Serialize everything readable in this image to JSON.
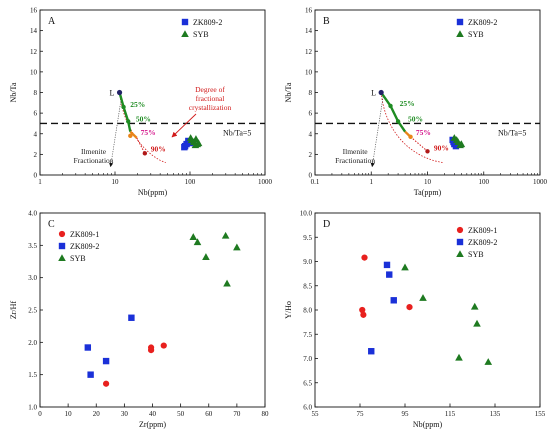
{
  "colors": {
    "zk8091": "#e8201e",
    "zk8092": "#1a30d8",
    "syb": "#1e7a20",
    "green_path": "#1e8c22",
    "orange_path": "#e9851a",
    "red_path": "#d11919",
    "axis": "#111111"
  },
  "chart_data": [
    {
      "type": "scatter",
      "panel_label": "A",
      "xlabel": "Nb(ppm)",
      "ylabel": "Nb/Ta",
      "xscale": "log",
      "xlim": [
        1,
        1000
      ],
      "ylim": [
        0,
        16
      ],
      "xticks": [
        1,
        10,
        100,
        1000
      ],
      "xtick_labels": [
        "1",
        "10",
        "100",
        "1000"
      ],
      "yticks": [
        0,
        2,
        4,
        6,
        8,
        10,
        12,
        14,
        16
      ],
      "ytick_labels": [
        "0",
        "2",
        "4",
        "6",
        "8",
        "10",
        "12",
        "14",
        "16"
      ],
      "legend_position": "top-right",
      "series": [
        {
          "name": "ZK809-2",
          "marker": "square",
          "color": "#1a30d8",
          "x": [
            84,
            90,
            95,
            100,
            86
          ],
          "y": [
            2.7,
            3.0,
            3.3,
            3.1,
            2.8
          ]
        },
        {
          "name": "SYB",
          "marker": "triangle",
          "color": "#1e7a20",
          "x": [
            102,
            112,
            120,
            125,
            105,
            118,
            130
          ],
          "y": [
            3.6,
            3.2,
            3.5,
            3.0,
            3.4,
            2.9,
            3.1
          ]
        }
      ],
      "reference_line": {
        "y": 5,
        "label": "Nb/Ta=5"
      },
      "trend": {
        "start_label": "L",
        "start": [
          11.5,
          8.0
        ],
        "green_path": [
          [
            11.5,
            8.0
          ],
          [
            13,
            6.6
          ],
          [
            15,
            5.2
          ],
          [
            16,
            4.2
          ]
        ],
        "orange_path": [
          [
            16,
            4.2
          ],
          [
            19.5,
            3.6
          ]
        ],
        "red_path": [
          [
            19.5,
            3.6
          ],
          [
            25,
            2.1
          ]
        ],
        "dots": [
          [
            11.5,
            8.0
          ],
          [
            13,
            6.6
          ],
          [
            15,
            5.2
          ],
          [
            16,
            3.8
          ],
          [
            25,
            2.1
          ]
        ],
        "percent_labels": [
          {
            "text": "25%",
            "x": 16,
            "y": 6.6
          },
          {
            "text": "50%",
            "x": 19,
            "y": 5.2
          },
          {
            "text": "75%",
            "x": 22,
            "y": 3.9
          },
          {
            "text": "90%",
            "x": 30,
            "y": 2.3
          }
        ],
        "annotation_right": [
          "Degree of",
          "fractional",
          "crystallization"
        ],
        "annotation_left": [
          "Ilmenite",
          "Fractionation"
        ]
      }
    },
    {
      "type": "scatter",
      "panel_label": "B",
      "xlabel": "Ta(ppm)",
      "ylabel": "Nb/Ta",
      "xscale": "log",
      "xlim": [
        0.1,
        1000
      ],
      "ylim": [
        0,
        16
      ],
      "xticks": [
        0.1,
        1,
        10,
        100,
        1000
      ],
      "xtick_labels": [
        "0.1",
        "1",
        "10",
        "100",
        "1000"
      ],
      "yticks": [
        0,
        2,
        4,
        6,
        8,
        10,
        12,
        14,
        16
      ],
      "ytick_labels": [
        "0",
        "2",
        "4",
        "6",
        "8",
        "10",
        "12",
        "14",
        "16"
      ],
      "legend_position": "top-right",
      "series": [
        {
          "name": "ZK809-2",
          "marker": "square",
          "color": "#1a30d8",
          "x": [
            28,
            30,
            32,
            29
          ],
          "y": [
            3.4,
            3.0,
            2.8,
            3.2
          ]
        },
        {
          "name": "SYB",
          "marker": "triangle",
          "color": "#1e7a20",
          "x": [
            30,
            35,
            38,
            33,
            40
          ],
          "y": [
            3.6,
            3.2,
            2.9,
            3.4,
            3.0
          ]
        }
      ],
      "reference_line": {
        "y": 5,
        "label": "Nb/Ta=5"
      },
      "trend": {
        "start_label": "L",
        "start": [
          1.5,
          8.0
        ],
        "green_path": [
          [
            1.5,
            8.0
          ],
          [
            2.2,
            6.7
          ],
          [
            3.0,
            5.2
          ],
          [
            4.0,
            4.2
          ]
        ],
        "orange_path": [
          [
            4.0,
            4.2
          ],
          [
            5.0,
            3.7
          ]
        ],
        "red_path": [
          [
            5.0,
            3.7
          ],
          [
            10,
            2.3
          ]
        ],
        "dots": [
          [
            1.5,
            8.0
          ],
          [
            2.2,
            6.7
          ],
          [
            3.0,
            5.2
          ],
          [
            5.0,
            3.7
          ],
          [
            10,
            2.3
          ]
        ],
        "percent_labels": [
          {
            "text": "25%",
            "x": 3.2,
            "y": 6.7
          },
          {
            "text": "50%",
            "x": 4.5,
            "y": 5.2
          },
          {
            "text": "75%",
            "x": 6.2,
            "y": 3.9
          },
          {
            "text": "90%",
            "x": 13,
            "y": 2.4
          }
        ],
        "annotation_left": [
          "Ilmenite",
          "Fractionation"
        ]
      }
    },
    {
      "type": "scatter",
      "panel_label": "C",
      "xlabel": "Zr(ppm)",
      "ylabel": "Zr/Hf",
      "xscale": "linear",
      "xlim": [
        0,
        80
      ],
      "ylim": [
        1.0,
        4.0
      ],
      "xticks": [
        0,
        10,
        20,
        30,
        40,
        50,
        60,
        70,
        80
      ],
      "xtick_labels": [
        "0",
        "10",
        "20",
        "30",
        "40",
        "50",
        "60",
        "70",
        "80"
      ],
      "yticks": [
        1.0,
        1.5,
        2.0,
        2.5,
        3.0,
        3.5,
        4.0
      ],
      "ytick_labels": [
        "1.0",
        "1.5",
        "2.0",
        "2.5",
        "3.0",
        "3.5",
        "4.0"
      ],
      "legend_position": "top-left",
      "series": [
        {
          "name": "ZK809-1",
          "marker": "circle",
          "color": "#e8201e",
          "x": [
            23.5,
            39.5,
            39.5,
            44
          ],
          "y": [
            1.36,
            1.88,
            1.92,
            1.95
          ]
        },
        {
          "name": "ZK809-2",
          "marker": "square",
          "color": "#1a30d8",
          "x": [
            17,
            18,
            23.5,
            32.5
          ],
          "y": [
            1.92,
            1.5,
            1.71,
            2.38
          ]
        },
        {
          "name": "SYB",
          "marker": "triangle",
          "color": "#1e7a20",
          "x": [
            54.5,
            56,
            59,
            66,
            66.5,
            70
          ],
          "y": [
            3.63,
            3.55,
            3.32,
            3.65,
            2.91,
            3.47
          ]
        }
      ]
    },
    {
      "type": "scatter",
      "panel_label": "D",
      "xlabel": "Nb(ppm)",
      "ylabel": "Y/Ho",
      "xscale": "linear",
      "xlim": [
        55,
        155
      ],
      "ylim": [
        6.0,
        10.0
      ],
      "xticks": [
        55,
        75,
        95,
        115,
        135,
        155
      ],
      "xtick_labels": [
        "55",
        "75",
        "95",
        "115",
        "135",
        "155"
      ],
      "yticks": [
        6.0,
        6.5,
        7.0,
        7.5,
        8.0,
        8.5,
        9.0,
        9.5,
        10.0
      ],
      "ytick_labels": [
        "6.0",
        "6.5",
        "7.0",
        "7.5",
        "8.0",
        "8.5",
        "9.0",
        "9.5",
        "10.0"
      ],
      "legend_position": "top-right",
      "series": [
        {
          "name": "ZK809-1",
          "marker": "circle",
          "color": "#e8201e",
          "x": [
            77,
            76,
            76.5,
            97
          ],
          "y": [
            9.08,
            8.0,
            7.9,
            8.06
          ]
        },
        {
          "name": "ZK809-2",
          "marker": "square",
          "color": "#1a30d8",
          "x": [
            87,
            88,
            90,
            80
          ],
          "y": [
            8.93,
            8.73,
            8.2,
            7.15
          ]
        },
        {
          "name": "SYB",
          "marker": "triangle",
          "color": "#1e7a20",
          "x": [
            95,
            103,
            119,
            126,
            127,
            132
          ],
          "y": [
            8.88,
            8.25,
            7.02,
            8.07,
            7.72,
            6.93
          ]
        }
      ]
    }
  ]
}
